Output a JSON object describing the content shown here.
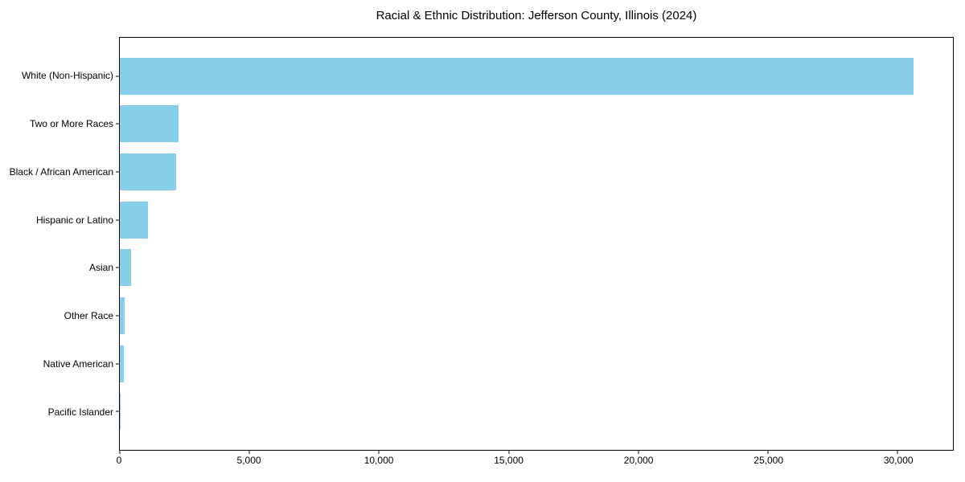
{
  "chart_data": {
    "type": "bar",
    "orientation": "horizontal",
    "title": "Racial & Ethnic Distribution: Jefferson County, Illinois (2024)",
    "categories": [
      "White (Non-Hispanic)",
      "Two or More Races",
      "Black / African American",
      "Hispanic or Latino",
      "Asian",
      "Other Race",
      "Native American",
      "Pacific Islander"
    ],
    "values": [
      30600,
      2250,
      2170,
      1080,
      430,
      200,
      165,
      15
    ],
    "bar_color": "#87CEEB",
    "text_color": "#000000",
    "background_color": "#ffffff",
    "xlabel": "",
    "ylabel": "",
    "xlim": [
      0,
      32130
    ],
    "ylim": [
      -0.8,
      7.8
    ],
    "xticks": [
      0,
      5000,
      10000,
      15000,
      20000,
      25000,
      30000
    ],
    "xtick_labels": [
      "0",
      "5,000",
      "10,000",
      "15,000",
      "20,000",
      "25,000",
      "30,000"
    ],
    "grid": false,
    "legend": "none",
    "frame": "box"
  }
}
